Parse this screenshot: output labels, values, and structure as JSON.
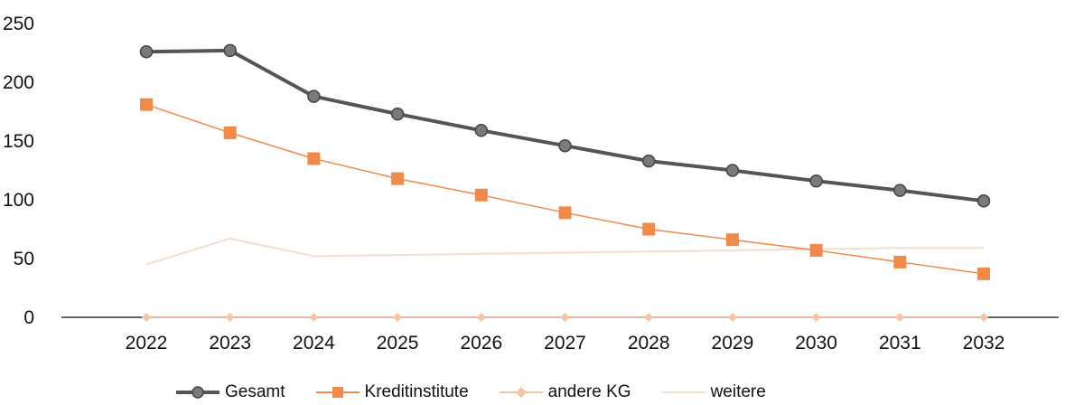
{
  "chart_data": {
    "type": "line",
    "title": "",
    "xlabel": "",
    "ylabel": "",
    "categories": [
      "2022",
      "2023",
      "2024",
      "2025",
      "2026",
      "2027",
      "2028",
      "2029",
      "2030",
      "2031",
      "2032"
    ],
    "ylim": [
      0,
      250
    ],
    "yticks": [
      "0",
      "50",
      "100",
      "150",
      "200",
      "250"
    ],
    "grid": false,
    "legend_position": "bottom",
    "series": [
      {
        "name": "Gesamt",
        "color": "#555555",
        "marker": "circle",
        "values": [
          226,
          227,
          188,
          173,
          159,
          146,
          133,
          125,
          116,
          108,
          99
        ]
      },
      {
        "name": "Kreditinstitute",
        "color": "#F08A4B",
        "marker": "square",
        "values": [
          181,
          157,
          135,
          118,
          104,
          89,
          75,
          66,
          57,
          47,
          37
        ]
      },
      {
        "name": "andere KG",
        "color": "#F7C4A5",
        "marker": "diamond",
        "values": [
          0,
          0,
          0,
          0,
          0,
          0,
          0,
          0,
          0,
          0,
          0
        ]
      },
      {
        "name": "weitere",
        "color": "#F3DDD0",
        "marker": "none",
        "values": [
          45,
          67,
          52,
          53,
          54,
          55,
          56,
          57,
          58,
          59,
          59
        ]
      }
    ]
  }
}
